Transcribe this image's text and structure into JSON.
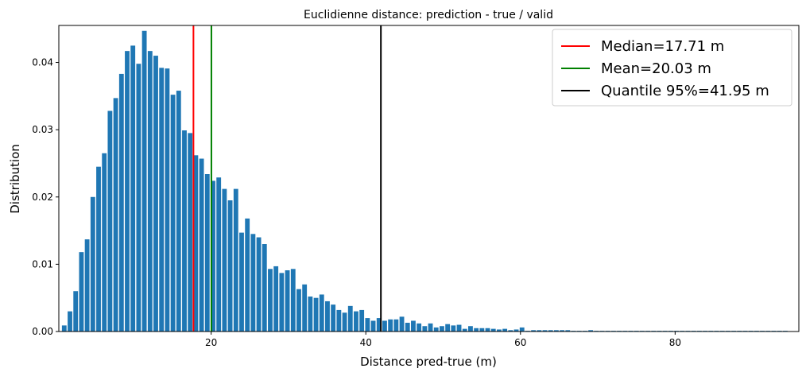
{
  "chart_data": {
    "type": "bar",
    "title": "Euclidienne distance: prediction - true / valid",
    "xlabel": "Distance pred-true (m)",
    "ylabel": "Distribution",
    "xlim": [
      0.3,
      96
    ],
    "ylim": [
      0,
      0.0455
    ],
    "xticks": [
      20,
      40,
      60,
      80
    ],
    "yticks": [
      0.0,
      0.01,
      0.02,
      0.03,
      0.04
    ],
    "ytick_labels": [
      "0.00",
      "0.01",
      "0.02",
      "0.03",
      "0.04"
    ],
    "bar_color": "#1f77b4",
    "bar_width": 0.6,
    "grid": false,
    "legend_position": "top-right",
    "x": [
      1.0,
      1.74,
      2.48,
      3.22,
      3.96,
      4.7,
      5.44,
      6.18,
      6.92,
      7.66,
      8.4,
      9.14,
      9.88,
      10.62,
      11.36,
      12.1,
      12.84,
      13.58,
      14.32,
      15.06,
      15.8,
      16.54,
      17.28,
      18.02,
      18.76,
      19.5,
      20.24,
      20.98,
      21.72,
      22.46,
      23.2,
      23.94,
      24.68,
      25.42,
      26.16,
      26.9,
      27.64,
      28.38,
      29.12,
      29.86,
      30.6,
      31.34,
      32.08,
      32.82,
      33.56,
      34.3,
      35.04,
      35.78,
      36.52,
      37.26,
      38.0,
      38.74,
      39.48,
      40.22,
      40.96,
      41.7,
      42.44,
      43.18,
      43.92,
      44.66,
      45.4,
      46.14,
      46.88,
      47.62,
      48.36,
      49.1,
      49.84,
      50.58,
      51.32,
      52.06,
      52.8,
      53.54,
      54.28,
      55.02,
      55.76,
      56.5,
      57.24,
      57.98,
      58.72,
      59.46,
      60.2,
      60.94,
      61.68,
      62.42,
      63.16,
      63.9,
      64.64,
      65.38,
      66.12,
      66.86,
      67.6,
      68.34,
      69.08,
      69.82,
      70.56,
      71.3,
      72.04,
      72.78,
      73.52,
      74.26,
      75.0,
      75.74,
      76.48,
      77.22,
      77.96,
      78.7,
      79.44,
      80.18,
      80.92,
      81.66,
      82.4,
      83.14,
      83.88,
      84.62,
      85.36,
      86.1,
      86.84,
      87.58,
      88.32,
      89.06,
      89.8,
      90.54,
      91.28,
      92.02,
      92.76,
      93.5,
      94.24
    ],
    "values": [
      0.0009,
      0.003,
      0.006,
      0.0118,
      0.0137,
      0.02,
      0.0245,
      0.0265,
      0.0328,
      0.0347,
      0.0383,
      0.0417,
      0.0425,
      0.0398,
      0.0447,
      0.0417,
      0.041,
      0.0392,
      0.0391,
      0.0352,
      0.0358,
      0.0299,
      0.0295,
      0.0262,
      0.0257,
      0.0234,
      0.0224,
      0.0229,
      0.0212,
      0.0195,
      0.0212,
      0.0147,
      0.0168,
      0.0145,
      0.014,
      0.013,
      0.0093,
      0.0097,
      0.0087,
      0.0091,
      0.0093,
      0.0063,
      0.007,
      0.0052,
      0.005,
      0.0055,
      0.0045,
      0.004,
      0.0032,
      0.0028,
      0.0038,
      0.003,
      0.0032,
      0.002,
      0.0016,
      0.002,
      0.0016,
      0.0018,
      0.0018,
      0.0022,
      0.0013,
      0.0016,
      0.0012,
      0.0008,
      0.0012,
      0.0006,
      0.0008,
      0.0011,
      0.0009,
      0.001,
      0.0004,
      0.0008,
      0.0005,
      0.0005,
      0.0005,
      0.0004,
      0.0003,
      0.0004,
      0.0002,
      0.0003,
      0.0006,
      0.0001,
      0.0002,
      0.0002,
      0.0002,
      0.0002,
      0.0002,
      0.0002,
      0.0002,
      0.0001,
      0.0001,
      0.0001,
      0.0002,
      0.0001,
      0.0001,
      0.0001,
      0.0001,
      0.0001,
      0.0001,
      0.0001,
      0.0001,
      0.0001,
      0.0001,
      0.0001,
      0.0001,
      0.0001,
      0.0001,
      0.0001,
      0.0001,
      0.0001,
      0.0001,
      0.0001,
      0.0001,
      0.0001,
      0.0001,
      0.0001,
      0.0001,
      0.0001,
      0.0001,
      0.0001,
      0.0001,
      0.0001,
      0.0001,
      0.0001,
      0.0001,
      0.0001,
      0.0001
    ],
    "vlines": [
      {
        "label": "Median=17.71 m",
        "x": 17.71,
        "color": "#ff0000"
      },
      {
        "label": "Mean=20.03 m",
        "x": 20.03,
        "color": "#008000"
      },
      {
        "label": "Quantile 95%=41.95 m",
        "x": 41.95,
        "color": "#000000"
      }
    ]
  }
}
